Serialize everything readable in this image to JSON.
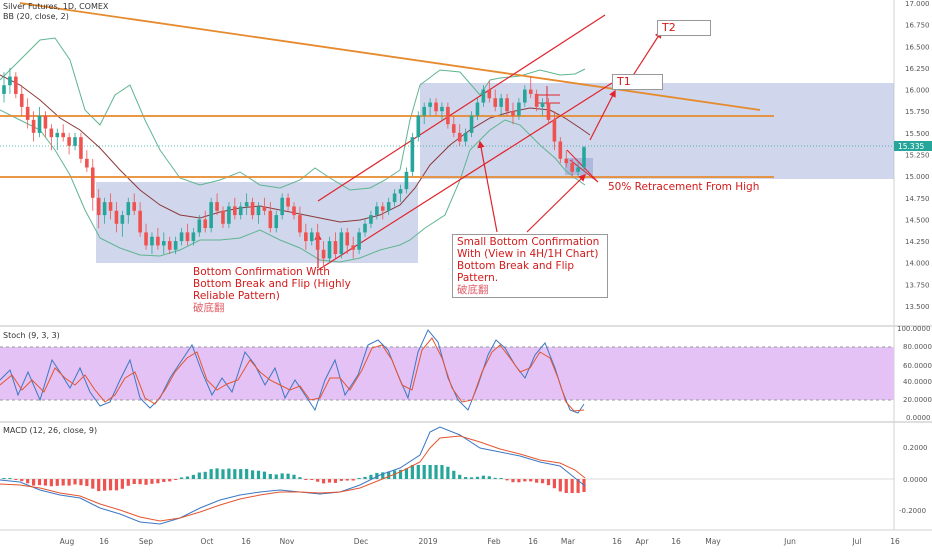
{
  "chart_data": {
    "type": "candlestick",
    "instrument_label": "Silver Futures, 1D, COMEX",
    "indicator_bb": "BB (20, close, 2)",
    "indicator_stoch": "Stoch (9, 3, 3)",
    "indicator_macd": "MACD (12, 26, close, 9)",
    "price_ticks": [
      "17.000",
      "16.750",
      "16.500",
      "16.250",
      "16.000",
      "15.750",
      "15.500",
      "15.250",
      "15.000",
      "14.750",
      "14.500",
      "14.250",
      "14.000",
      "13.750",
      "13.500"
    ],
    "price_ylim": [
      13.3,
      17.0
    ],
    "last_price": "15.335",
    "stoch_ticks": [
      "100.0000",
      "80.0000",
      "60.0000",
      "40.0000",
      "20.0000",
      "0.0000"
    ],
    "macd_ticks": [
      "0.2000",
      "0.0000",
      "-0.2000"
    ],
    "x_labels": [
      "Aug",
      "16",
      "Sep",
      "Oct",
      "16",
      "Nov",
      "Dec",
      "2019",
      "Feb",
      "16",
      "Mar",
      "16",
      "Apr",
      "16",
      "May",
      "Jun",
      "Jul",
      "16"
    ],
    "ohlc": [
      [
        15.95,
        16.2,
        15.85,
        16.05
      ],
      [
        16.05,
        16.25,
        15.95,
        16.15
      ],
      [
        16.15,
        16.2,
        15.9,
        15.95
      ],
      [
        15.95,
        16.05,
        15.7,
        15.8
      ],
      [
        15.8,
        15.9,
        15.55,
        15.65
      ],
      [
        15.65,
        15.75,
        15.4,
        15.5
      ],
      [
        15.5,
        15.8,
        15.45,
        15.7
      ],
      [
        15.7,
        15.75,
        15.45,
        15.55
      ],
      [
        15.55,
        15.6,
        15.3,
        15.45
      ],
      [
        15.45,
        15.55,
        15.3,
        15.5
      ],
      [
        15.5,
        15.6,
        15.4,
        15.45
      ],
      [
        15.45,
        15.5,
        15.25,
        15.35
      ],
      [
        15.35,
        15.5,
        15.3,
        15.45
      ],
      [
        15.45,
        15.5,
        15.15,
        15.2
      ],
      [
        15.2,
        15.3,
        15.05,
        15.1
      ],
      [
        15.1,
        15.2,
        14.6,
        14.75
      ],
      [
        14.75,
        14.85,
        14.4,
        14.55
      ],
      [
        14.55,
        14.75,
        14.45,
        14.7
      ],
      [
        14.7,
        14.8,
        14.5,
        14.6
      ],
      [
        14.6,
        14.7,
        14.35,
        14.45
      ],
      [
        14.45,
        14.6,
        14.3,
        14.55
      ],
      [
        14.55,
        14.75,
        14.45,
        14.7
      ],
      [
        14.7,
        14.8,
        14.55,
        14.6
      ],
      [
        14.6,
        14.7,
        14.3,
        14.35
      ],
      [
        14.35,
        14.45,
        14.15,
        14.2
      ],
      [
        14.2,
        14.35,
        14.1,
        14.3
      ],
      [
        14.3,
        14.4,
        14.15,
        14.2
      ],
      [
        14.2,
        14.35,
        14.1,
        14.25
      ],
      [
        14.25,
        14.3,
        14.1,
        14.15
      ],
      [
        14.15,
        14.3,
        14.1,
        14.25
      ],
      [
        14.25,
        14.4,
        14.2,
        14.35
      ],
      [
        14.35,
        14.45,
        14.2,
        14.25
      ],
      [
        14.25,
        14.4,
        14.2,
        14.35
      ],
      [
        14.35,
        14.55,
        14.3,
        14.5
      ],
      [
        14.5,
        14.6,
        14.35,
        14.4
      ],
      [
        14.4,
        14.75,
        14.35,
        14.7
      ],
      [
        14.7,
        14.8,
        14.55,
        14.6
      ],
      [
        14.6,
        14.65,
        14.4,
        14.45
      ],
      [
        14.45,
        14.7,
        14.4,
        14.65
      ],
      [
        14.65,
        14.75,
        14.5,
        14.55
      ],
      [
        14.55,
        14.7,
        14.5,
        14.65
      ],
      [
        14.65,
        14.8,
        14.55,
        14.7
      ],
      [
        14.7,
        14.75,
        14.5,
        14.55
      ],
      [
        14.55,
        14.7,
        14.45,
        14.65
      ],
      [
        14.65,
        14.75,
        14.55,
        14.6
      ],
      [
        14.6,
        14.7,
        14.35,
        14.4
      ],
      [
        14.4,
        14.6,
        14.35,
        14.55
      ],
      [
        14.55,
        14.8,
        14.5,
        14.75
      ],
      [
        14.75,
        14.8,
        14.6,
        14.65
      ],
      [
        14.65,
        14.7,
        14.5,
        14.55
      ],
      [
        14.55,
        14.65,
        14.3,
        14.35
      ],
      [
        14.35,
        14.45,
        14.15,
        14.25
      ],
      [
        14.25,
        14.4,
        14.2,
        14.35
      ],
      [
        14.35,
        14.45,
        14.1,
        14.15
      ],
      [
        14.15,
        14.25,
        13.95,
        14.05
      ],
      [
        14.05,
        14.3,
        14.0,
        14.25
      ],
      [
        14.25,
        14.35,
        14.05,
        14.1
      ],
      [
        14.1,
        14.4,
        14.05,
        14.35
      ],
      [
        14.35,
        14.4,
        14.1,
        14.2
      ],
      [
        14.2,
        14.3,
        14.05,
        14.15
      ],
      [
        14.15,
        14.4,
        14.1,
        14.35
      ],
      [
        14.35,
        14.5,
        14.3,
        14.45
      ],
      [
        14.45,
        14.6,
        14.4,
        14.55
      ],
      [
        14.55,
        14.7,
        14.5,
        14.65
      ],
      [
        14.65,
        14.7,
        14.5,
        14.6
      ],
      [
        14.6,
        14.75,
        14.55,
        14.7
      ],
      [
        14.7,
        14.85,
        14.65,
        14.8
      ],
      [
        14.8,
        14.9,
        14.7,
        14.85
      ],
      [
        14.85,
        15.1,
        14.8,
        15.05
      ],
      [
        15.05,
        15.5,
        15.0,
        15.45
      ],
      [
        15.45,
        15.75,
        15.4,
        15.7
      ],
      [
        15.7,
        15.85,
        15.6,
        15.8
      ],
      [
        15.8,
        15.9,
        15.7,
        15.85
      ],
      [
        15.85,
        15.9,
        15.7,
        15.75
      ],
      [
        15.75,
        15.85,
        15.65,
        15.8
      ],
      [
        15.8,
        15.85,
        15.55,
        15.6
      ],
      [
        15.6,
        15.7,
        15.45,
        15.5
      ],
      [
        15.5,
        15.6,
        15.35,
        15.4
      ],
      [
        15.4,
        15.55,
        15.35,
        15.5
      ],
      [
        15.5,
        15.75,
        15.45,
        15.7
      ],
      [
        15.7,
        15.9,
        15.65,
        15.85
      ],
      [
        15.85,
        16.05,
        15.8,
        16.0
      ],
      [
        16.0,
        16.1,
        15.85,
        15.9
      ],
      [
        15.9,
        16.0,
        15.75,
        15.8
      ],
      [
        15.8,
        15.95,
        15.7,
        15.9
      ],
      [
        15.9,
        15.95,
        15.7,
        15.75
      ],
      [
        15.75,
        15.85,
        15.6,
        15.7
      ],
      [
        15.7,
        15.9,
        15.65,
        15.85
      ],
      [
        15.85,
        16.05,
        15.8,
        16.0
      ],
      [
        16.0,
        16.15,
        15.9,
        15.95
      ],
      [
        15.95,
        16.0,
        15.75,
        15.8
      ],
      [
        15.8,
        15.9,
        15.7,
        15.85
      ],
      [
        15.85,
        15.9,
        15.6,
        15.65
      ],
      [
        15.65,
        15.75,
        15.3,
        15.4
      ],
      [
        15.4,
        15.45,
        15.15,
        15.2
      ],
      [
        15.2,
        15.3,
        15.1,
        15.15
      ],
      [
        15.15,
        15.2,
        15.0,
        15.05
      ],
      [
        15.05,
        15.15,
        15.0,
        15.1
      ],
      [
        15.1,
        15.35,
        15.05,
        15.335
      ]
    ]
  },
  "annotations": {
    "bottom_confirmation": [
      "Bottom Confirmation With",
      "Bottom Break and Flip (Highly",
      "Reliable Pattern)",
      "破底翻"
    ],
    "small_bottom": [
      "Small Bottom Confirmation",
      "With (View in 4H/1H Chart)",
      "Bottom Break and Flip Pattern.",
      "破底翻"
    ],
    "retracement": "50% Retracement From High",
    "t1": "T1",
    "t2": "T2"
  },
  "colors": {
    "up": "#26a69a",
    "down": "#ef5350",
    "trendline": "#e68a2e",
    "channel": "#e0242c",
    "zone": "#aab4dd",
    "stoch_band": "#e5c2f5",
    "bb": "#5fb58f",
    "ma": "#8b3a3a"
  }
}
